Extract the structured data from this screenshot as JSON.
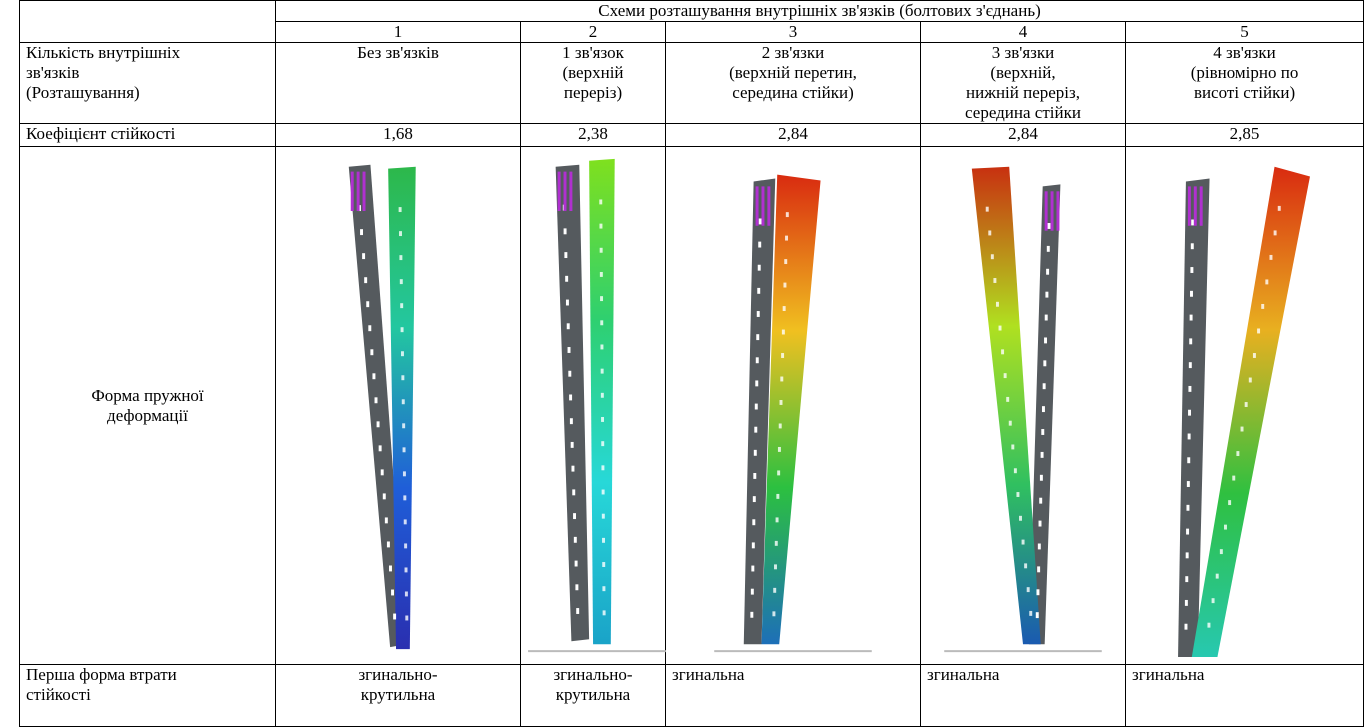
{
  "table": {
    "header": {
      "group": "Схеми розташування внутрішніх зв'язків (болтових з'єднань)",
      "numbers": [
        1,
        2,
        3,
        4,
        5
      ]
    },
    "rows": [
      {
        "label": "Кількість внутрішніх\nзв'язків\n(Розташування)",
        "cells": [
          "Без зв'язків",
          "1 зв'язок\n(верхній\nпереріз)",
          "2 зв'язки\n(верхній перетин,\nсередина стійки)",
          "3 зв'язки\n(верхній,\nнижній переріз,\nсередина стійки",
          "4 зв'язки\n(рівномірно по\nвисоті стійки)"
        ]
      },
      {
        "label": "Коефіцієнт стійкості",
        "cells": [
          "1,68",
          "2,38",
          "2,84",
          "2,84",
          "2,85"
        ]
      },
      {
        "label": "Форма пружної\nдеформації"
      },
      {
        "label": "Перша форма втрати\nстійкості",
        "cells": [
          "згинально-\nкрутильна",
          "згинально-\nкрутильна",
          "згинальна",
          "згинальна",
          "згинальна"
        ]
      }
    ]
  }
}
